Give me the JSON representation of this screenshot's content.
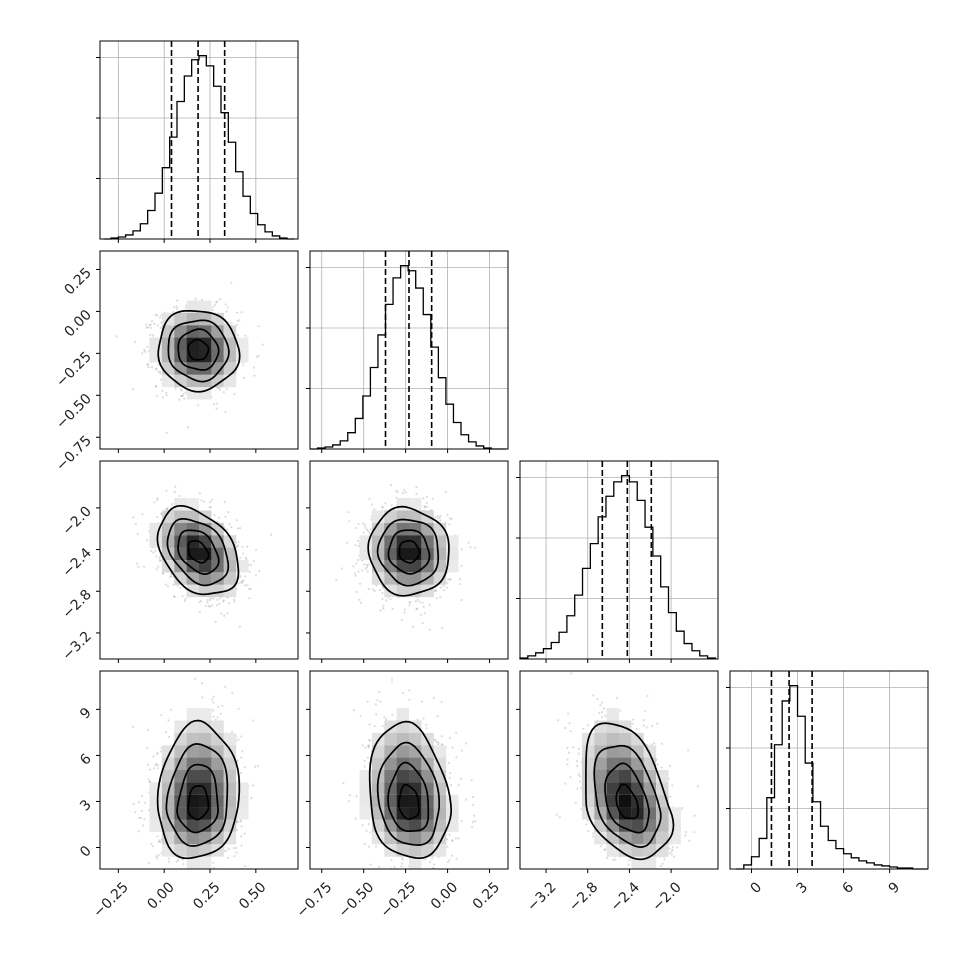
{
  "chart_data": {
    "type": "corner",
    "parameters": [
      {
        "range": [
          -0.35,
          0.73
        ],
        "ticks": [
          -0.25,
          0.0,
          0.25,
          0.5
        ],
        "tick_labels": [
          "−0.25",
          "0.00",
          "0.25",
          "0.50"
        ],
        "mean": 0.185,
        "sd": 0.11
      },
      {
        "range": [
          -0.82,
          0.36
        ],
        "ticks": [
          -0.75,
          -0.5,
          -0.25,
          0.0,
          0.25
        ],
        "tick_labels": [
          "−0.75",
          "−0.50",
          "−0.25",
          "0.00",
          "0.25"
        ],
        "mean": -0.23,
        "sd": 0.12
      },
      {
        "range": [
          -3.45,
          -1.55
        ],
        "ticks": [
          -3.2,
          -2.8,
          -2.4,
          -2.0
        ],
        "tick_labels": [
          "−3.2",
          "−2.8",
          "−2.4",
          "−2.0"
        ],
        "mean": -2.42,
        "sd": 0.21
      },
      {
        "range": [
          -1.4,
          11.5
        ],
        "ticks": [
          0,
          3,
          6,
          9
        ],
        "tick_labels": [
          "0",
          "3",
          "6",
          "9"
        ],
        "mean": 2.7,
        "sd": 1.7
      }
    ],
    "histograms": [
      {
        "param": 0,
        "bins": [
          -0.33,
          -0.29,
          -0.25,
          -0.21,
          -0.17,
          -0.13,
          -0.09,
          -0.05,
          -0.01,
          0.03,
          0.07,
          0.11,
          0.15,
          0.19,
          0.23,
          0.27,
          0.31,
          0.35,
          0.39,
          0.43,
          0.47,
          0.51,
          0.55,
          0.59,
          0.63,
          0.67
        ],
        "counts": [
          0,
          1,
          2,
          4,
          8,
          15,
          28,
          45,
          70,
          100,
          135,
          160,
          176,
          180,
          170,
          150,
          124,
          95,
          66,
          42,
          25,
          14,
          7,
          3,
          1,
          0
        ],
        "quantiles": [
          0.04,
          0.185,
          0.33
        ]
      },
      {
        "param": 1,
        "bins": [
          -0.82,
          -0.775,
          -0.73,
          -0.685,
          -0.64,
          -0.595,
          -0.55,
          -0.505,
          -0.46,
          -0.415,
          -0.37,
          -0.325,
          -0.28,
          -0.235,
          -0.19,
          -0.145,
          -0.1,
          -0.055,
          -0.01,
          0.035,
          0.08,
          0.125,
          0.17,
          0.215,
          0.26,
          0.305
        ],
        "counts": [
          0,
          1,
          2,
          4,
          8,
          16,
          30,
          52,
          80,
          112,
          142,
          168,
          180,
          175,
          158,
          132,
          100,
          70,
          44,
          26,
          14,
          7,
          3,
          1,
          0,
          0
        ],
        "quantiles": [
          -0.37,
          -0.23,
          -0.095
        ]
      },
      {
        "param": 2,
        "bins": [
          -3.45,
          -3.375,
          -3.3,
          -3.225,
          -3.15,
          -3.075,
          -3.0,
          -2.925,
          -2.85,
          -2.775,
          -2.7,
          -2.625,
          -2.55,
          -2.475,
          -2.4,
          -2.325,
          -2.25,
          -2.175,
          -2.1,
          -2.025,
          -1.95,
          -1.875,
          -1.8,
          -1.725,
          -1.65
        ],
        "counts": [
          1,
          3,
          6,
          10,
          16,
          26,
          42,
          62,
          88,
          112,
          138,
          158,
          172,
          178,
          172,
          154,
          128,
          100,
          70,
          45,
          27,
          15,
          8,
          3,
          1
        ],
        "quantiles": [
          -2.66,
          -2.42,
          -2.19
        ]
      },
      {
        "param": 3,
        "bins": [
          -1.0,
          -0.5,
          0.0,
          0.5,
          1.0,
          1.5,
          2.0,
          2.5,
          3.0,
          3.5,
          4.0,
          4.5,
          5.0,
          5.5,
          6.0,
          6.5,
          7.0,
          7.5,
          8.0,
          8.5,
          9.0,
          9.5,
          10.0,
          10.5,
          11.0
        ],
        "counts": [
          0,
          4,
          12,
          30,
          70,
          122,
          165,
          180,
          150,
          104,
          66,
          42,
          28,
          20,
          15,
          11,
          8,
          6,
          4,
          3,
          2,
          1,
          1,
          0,
          0
        ],
        "quantiles": [
          1.3,
          2.45,
          3.95
        ]
      }
    ],
    "pairs": [
      {
        "x_param": 0,
        "y_param": 1,
        "rho": -0.05
      },
      {
        "x_param": 0,
        "y_param": 2,
        "rho": -0.35
      },
      {
        "x_param": 1,
        "y_param": 2,
        "rho": -0.05
      },
      {
        "x_param": 0,
        "y_param": 3,
        "rho": 0.08
      },
      {
        "x_param": 1,
        "y_param": 3,
        "rho": -0.15
      },
      {
        "x_param": 2,
        "y_param": 3,
        "rho": -0.35
      }
    ],
    "contour_levels_sigma": [
      0.5,
      1.0,
      1.5,
      2.0
    ],
    "grid": true,
    "colors": {
      "line": "#000000",
      "grid": "#b0b0b0",
      "density_max": "#000000",
      "scatter": "#808080"
    }
  }
}
